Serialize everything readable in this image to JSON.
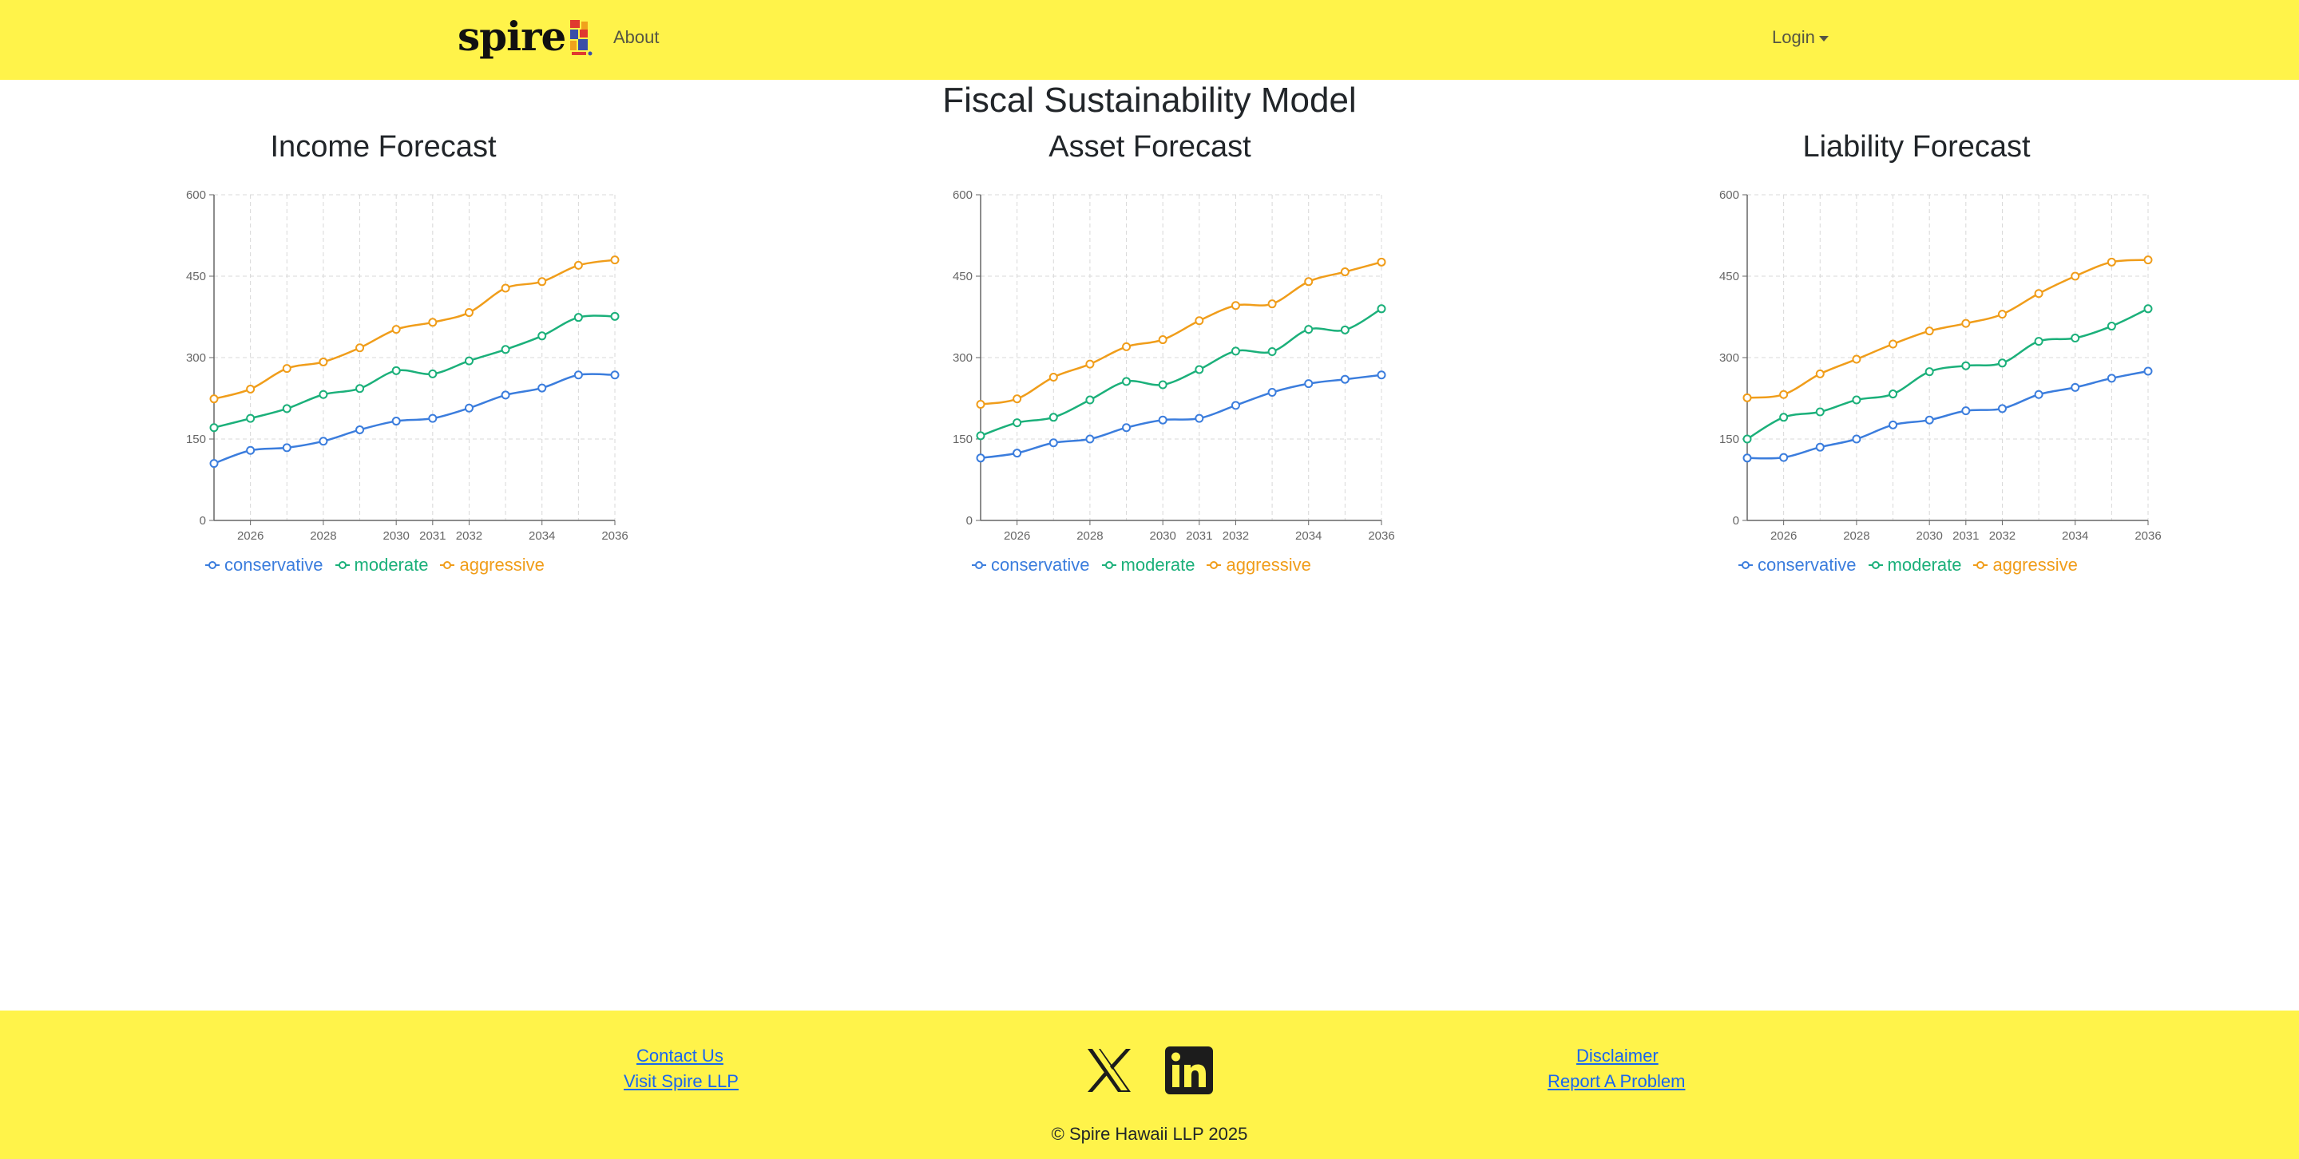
{
  "nav": {
    "brand": "spire",
    "about_label": "About",
    "login_label": "Login"
  },
  "main": {
    "title": "Fiscal Sustainability Model"
  },
  "legend_labels": [
    "conservative",
    "moderate",
    "aggressive"
  ],
  "colors": {
    "navbar_bg": "#fff34a",
    "conservative": "#3b7ddd",
    "moderate": "#1bb07a",
    "aggressive": "#f09d1a",
    "link": "#1a66ee"
  },
  "chart_data": [
    {
      "type": "line",
      "title": "Income Forecast",
      "x": [
        2025,
        2026,
        2027,
        2028,
        2029,
        2030,
        2031,
        2032,
        2033,
        2034,
        2035,
        2036
      ],
      "x_tick_labels": [
        "2026",
        "2028",
        "2030",
        "2031",
        "2032",
        "2034",
        "2036"
      ],
      "xlim": [
        2025,
        2036
      ],
      "ylim": [
        0,
        600
      ],
      "y_ticks": [
        0,
        150,
        300,
        450,
        600
      ],
      "grid": true,
      "legend": "bottom",
      "series": [
        {
          "name": "conservative",
          "values": [
            105,
            129,
            134,
            146,
            167,
            183,
            188,
            207,
            231,
            244,
            268,
            268
          ]
        },
        {
          "name": "moderate",
          "values": [
            171,
            188,
            206,
            232,
            243,
            276,
            270,
            294,
            315,
            340,
            374,
            376
          ]
        },
        {
          "name": "aggressive",
          "values": [
            224,
            242,
            280,
            292,
            318,
            352,
            365,
            383,
            428,
            440,
            470,
            480
          ]
        }
      ]
    },
    {
      "type": "line",
      "title": "Asset Forecast",
      "x": [
        2025,
        2026,
        2027,
        2028,
        2029,
        2030,
        2031,
        2032,
        2033,
        2034,
        2035,
        2036
      ],
      "x_tick_labels": [
        "2026",
        "2028",
        "2030",
        "2031",
        "2032",
        "2034",
        "2036"
      ],
      "xlim": [
        2025,
        2036
      ],
      "ylim": [
        0,
        600
      ],
      "y_ticks": [
        0,
        150,
        300,
        450,
        600
      ],
      "grid": true,
      "legend": "bottom",
      "series": [
        {
          "name": "conservative",
          "values": [
            115,
            124,
            143,
            150,
            171,
            185,
            188,
            212,
            236,
            252,
            260,
            268
          ]
        },
        {
          "name": "moderate",
          "values": [
            156,
            180,
            190,
            222,
            256,
            250,
            278,
            312,
            311,
            352,
            351,
            390
          ]
        },
        {
          "name": "aggressive",
          "values": [
            214,
            224,
            264,
            288,
            320,
            333,
            368,
            396,
            399,
            440,
            458,
            476
          ]
        }
      ]
    },
    {
      "type": "line",
      "title": "Liability Forecast",
      "x": [
        2025,
        2026,
        2027,
        2028,
        2029,
        2030,
        2031,
        2032,
        2033,
        2034,
        2035,
        2036
      ],
      "x_tick_labels": [
        "2026",
        "2028",
        "2030",
        "2031",
        "2032",
        "2034",
        "2036"
      ],
      "xlim": [
        2025,
        2036
      ],
      "ylim": [
        0,
        600
      ],
      "y_ticks": [
        0,
        150,
        300,
        450,
        600
      ],
      "grid": true,
      "legend": "bottom",
      "series": [
        {
          "name": "conservative",
          "values": [
            115,
            116,
            135,
            150,
            176,
            185,
            202,
            206,
            232,
            245,
            262,
            275
          ]
        },
        {
          "name": "moderate",
          "values": [
            150,
            190,
            200,
            222,
            233,
            274,
            285,
            290,
            330,
            336,
            358,
            390
          ]
        },
        {
          "name": "aggressive",
          "values": [
            226,
            232,
            270,
            297,
            325,
            349,
            363,
            380,
            418,
            450,
            476,
            480
          ]
        }
      ]
    }
  ],
  "footer": {
    "contact_label": "Contact Us",
    "visit_label": "Visit Spire LLP",
    "disclaimer_label": "Disclaimer",
    "report_label": "Report A Problem",
    "copyright": "© Spire Hawaii LLP 2025",
    "social_icons": [
      "x-icon",
      "linkedin-icon"
    ]
  }
}
